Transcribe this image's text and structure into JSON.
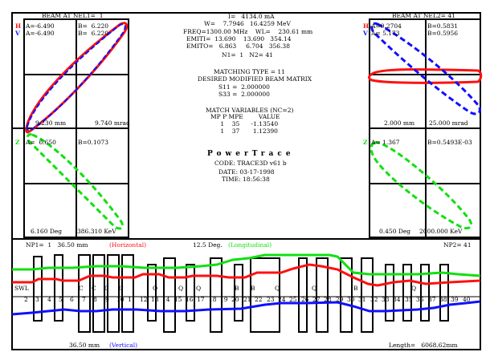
{
  "app": {
    "title": "PowerTrace",
    "code": "CODE: TRACE3D v61 b",
    "date": "DATE: 03-17-1998",
    "time": "TIME: 18:56:38"
  },
  "colors": {
    "horizontal": "#ff1010",
    "vertical": "#1010ff",
    "longitudinal": "#10e010"
  },
  "left_panel": {
    "title": "BEAM AT NEL1=  1",
    "h_marker": "H",
    "v_marker": "V",
    "z_marker": "Z",
    "a_h": "A=-6.490",
    "b_h": "B=  6.220",
    "a_v": "A=-6.490",
    "b_v": "B=  6.220",
    "scale_x": "9.230 mm",
    "scale_xp": "9.740 mrad",
    "a_z": "A=  6.650",
    "b_z": "B=0.1073",
    "scale_phase": "6.160 Deg",
    "scale_energy": "386.310 KeV"
  },
  "right_panel": {
    "title": "BEAM AT NEL2= 41",
    "h_marker": "H",
    "v_marker": "V",
    "z_marker": "Z",
    "a_h": "A=0.2704",
    "b_h": "B=0.5831",
    "a_v": "A= 5.173",
    "b_v": "B=0.5956",
    "scale_x": "2.000 mm",
    "scale_xp": "25.000 mrad",
    "a_z": "A= 1.367",
    "b_z": "B=0.5493E-03",
    "scale_phase": "0.450 Deg",
    "scale_energy": "2000.000 KeV"
  },
  "center": {
    "current": "I=   4134.0 mA",
    "w_line": "W=    7.7946   16.4259 MeV",
    "freq_line": "FREQ=1300.00 MHz    WL=    230.61 mm",
    "emiti_line": "EMITI=  13.690    13.690   354.14",
    "emito_line": "EMITO=   6.863     6.704   356.38",
    "n_line": "N1=  1   N2= 41",
    "matching_type": "MATCHING TYPE = 11",
    "desired": "DESIRED MODIFIED BEAM MATRIX",
    "s11": "S11 =  2.000000",
    "s33": "S33 =  2.000000",
    "match_vars": "MATCH VARIABLES (NC=2)",
    "mv_header": "MP P MPE        VALUE",
    "mv_row1": " 1    35      -1.13540",
    "mv_row2": " 1    37       1.12390"
  },
  "bottom_panel": {
    "np1": "NP1=  1   36.50 mm",
    "horizontal_label": "(Horizontal)",
    "deg_label": "12.5 Deg.",
    "longitudinal_label": "(Longitudinal)",
    "np2": "NP2= 41",
    "vertical_scale": "36.50 mm",
    "vertical_label": "(Vertical)",
    "length": "Length=   6068.62mm",
    "element_letters": [
      "SWL",
      "C",
      "C",
      "C",
      "C",
      "Q",
      "Q",
      "Q",
      "B",
      "B",
      "Q",
      "Q",
      "B",
      "Q"
    ],
    "element_numbers": [
      "2",
      "3",
      "4",
      "5",
      "6",
      "7",
      "8",
      "9",
      "10",
      "1",
      "12",
      "13",
      "14",
      "15",
      "16",
      "17",
      "18",
      "19",
      "20",
      "21",
      "22",
      "23",
      "24",
      "25",
      "26",
      "27",
      "28",
      "29",
      "30",
      "31",
      "32",
      "33",
      "34",
      "35",
      "36",
      "37",
      "38",
      "39",
      "40"
    ]
  }
}
